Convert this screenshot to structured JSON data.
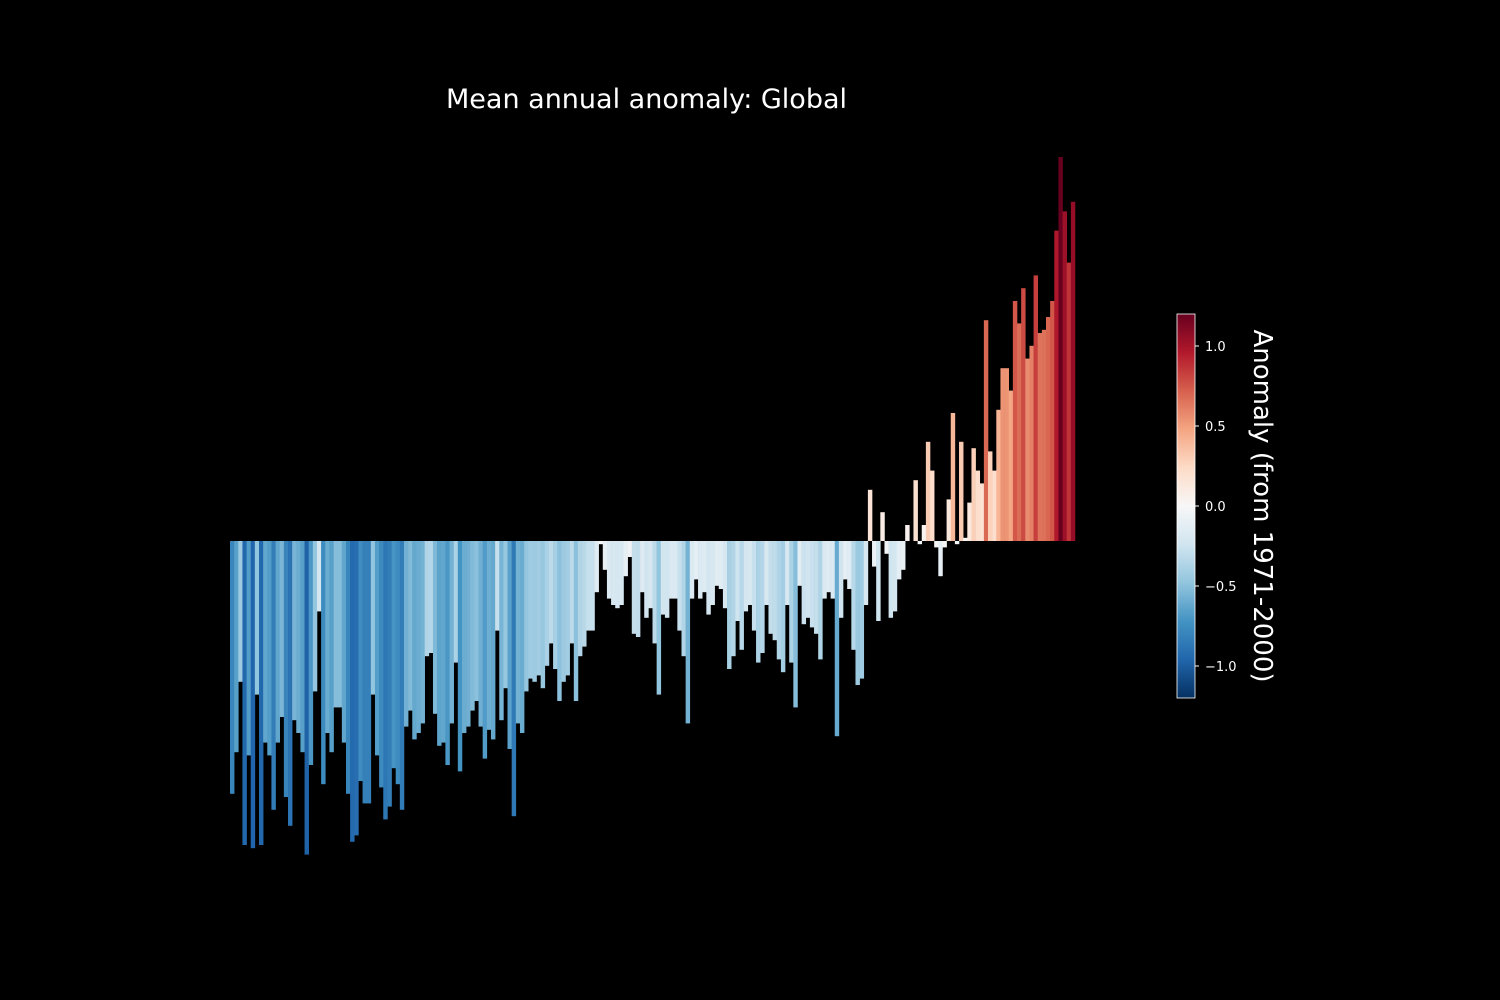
{
  "chart_data": {
    "type": "bar",
    "title": "Mean annual anomaly: Global",
    "colorbar_label": "Anomaly (from 1971-2000)",
    "colorbar_ticks": [
      1.0,
      0.5,
      0.0,
      -0.5,
      -1.0
    ],
    "colorbar_tick_labels": [
      "1.0",
      "0.5",
      "0.0",
      "−0.5",
      "−1.0"
    ],
    "colorbar_range": [
      -1.2,
      1.2
    ],
    "colormap": "RdBu_r",
    "grid": false,
    "axes_visible": false,
    "values": [
      -0.79,
      -0.66,
      -0.44,
      -0.95,
      -0.67,
      -0.96,
      -0.48,
      -0.95,
      -0.63,
      -0.67,
      -0.84,
      -0.63,
      -0.55,
      -0.8,
      -0.89,
      -0.56,
      -0.6,
      -0.66,
      -0.98,
      -0.7,
      -0.47,
      -0.22,
      -0.76,
      -0.6,
      -0.66,
      -0.52,
      -0.52,
      -0.63,
      -0.79,
      -0.94,
      -0.92,
      -0.75,
      -0.82,
      -0.82,
      -0.48,
      -0.67,
      -0.77,
      -0.87,
      -0.83,
      -0.71,
      -0.76,
      -0.84,
      -0.58,
      -0.53,
      -0.62,
      -0.6,
      -0.57,
      -0.36,
      -0.35,
      -0.54,
      -0.64,
      -0.63,
      -0.7,
      -0.57,
      -0.38,
      -0.72,
      -0.6,
      -0.58,
      -0.53,
      -0.5,
      -0.58,
      -0.68,
      -0.59,
      -0.62,
      -0.28,
      -0.56,
      -0.46,
      -0.65,
      -0.86,
      -0.57,
      -0.6,
      -0.47,
      -0.43,
      -0.44,
      -0.42,
      -0.46,
      -0.39,
      -0.32,
      -0.4,
      -0.5,
      -0.44,
      -0.42,
      -0.32,
      -0.5,
      -0.36,
      -0.33,
      -0.28,
      -0.28,
      -0.16,
      -0.01,
      -0.09,
      -0.18,
      -0.2,
      -0.21,
      -0.2,
      -0.11,
      -0.05,
      -0.29,
      -0.3,
      -0.16,
      -0.24,
      -0.21,
      -0.32,
      -0.48,
      -0.23,
      -0.24,
      -0.18,
      -0.18,
      -0.28,
      -0.36,
      -0.57,
      -0.18,
      -0.12,
      -0.18,
      -0.16,
      -0.23,
      -0.2,
      -0.14,
      -0.15,
      -0.21,
      -0.4,
      -0.36,
      -0.25,
      -0.34,
      -0.22,
      -0.2,
      -0.28,
      -0.38,
      -0.35,
      -0.2,
      -0.29,
      -0.31,
      -0.37,
      -0.41,
      -0.2,
      -0.38,
      -0.52,
      -0.14,
      -0.26,
      -0.24,
      -0.27,
      -0.29,
      -0.37,
      -0.18,
      -0.16,
      -0.18,
      -0.61,
      -0.24,
      -0.12,
      -0.15,
      -0.34,
      -0.45,
      -0.43,
      -0.2,
      0.16,
      -0.08,
      -0.25,
      0.09,
      -0.04,
      -0.24,
      -0.22,
      -0.12,
      -0.09,
      0.05,
      0.0,
      0.19,
      -0.01,
      0.05,
      0.31,
      0.22,
      -0.02,
      -0.11,
      -0.02,
      0.13,
      0.4,
      -0.01,
      0.31,
      0.01,
      0.12,
      0.29,
      0.22,
      0.18,
      0.69,
      0.28,
      0.22,
      0.41,
      0.54,
      0.54,
      0.47,
      0.75,
      0.68,
      0.79,
      0.57,
      0.61,
      0.83,
      0.65,
      0.66,
      0.7,
      0.75,
      0.97,
      1.2,
      1.03,
      0.87,
      1.06
    ]
  }
}
